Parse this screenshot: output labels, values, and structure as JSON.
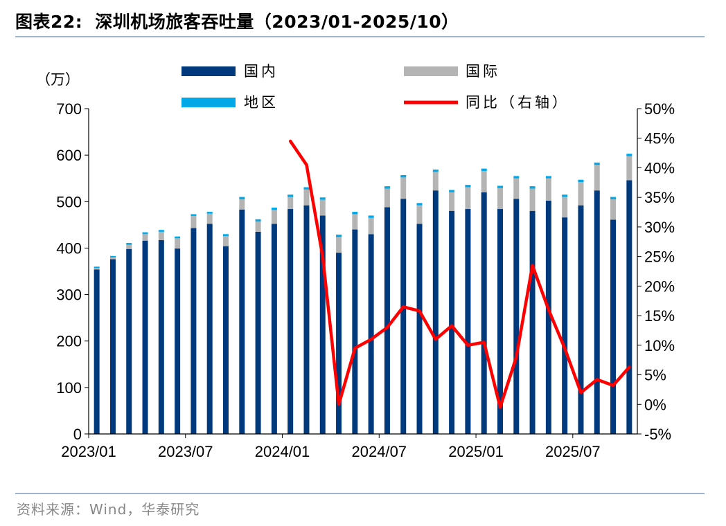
{
  "header": {
    "label": "图表22:",
    "title": "深圳机场旅客吞吐量（2023/01-2025/10）"
  },
  "footer": {
    "source": "资料来源：Wind，华泰研究"
  },
  "chart_data": {
    "type": "bar",
    "stacked": true,
    "unit_left": "（万）",
    "ylim_left": [
      0,
      700
    ],
    "yticks_left": [
      "0",
      "100",
      "200",
      "300",
      "400",
      "500",
      "600",
      "700"
    ],
    "ylim_right": [
      -5,
      50
    ],
    "yticks_right": [
      "-5%",
      "0%",
      "5%",
      "10%",
      "15%",
      "20%",
      "25%",
      "30%",
      "35%",
      "40%",
      "45%",
      "50%"
    ],
    "x_tick_labels": [
      {
        "index": 0,
        "label": "2023/01"
      },
      {
        "index": 6,
        "label": "2023/07"
      },
      {
        "index": 12,
        "label": "2024/01"
      },
      {
        "index": 18,
        "label": "2024/07"
      },
      {
        "index": 24,
        "label": "2025/01"
      },
      {
        "index": 30,
        "label": "2025/07"
      }
    ],
    "categories": [
      "2023/01",
      "2023/02",
      "2023/03",
      "2023/04",
      "2023/05",
      "2023/06",
      "2023/07",
      "2023/08",
      "2023/09",
      "2023/10",
      "2023/11",
      "2023/12",
      "2024/01",
      "2024/02",
      "2024/03",
      "2024/04",
      "2024/05",
      "2024/06",
      "2024/07",
      "2024/08",
      "2024/09",
      "2024/10",
      "2024/11",
      "2024/12",
      "2025/01",
      "2025/02",
      "2025/03",
      "2025/04",
      "2025/05",
      "2025/06",
      "2025/07",
      "2025/08",
      "2025/09",
      "2025/10"
    ],
    "series": [
      {
        "name": "国内",
        "color": "#003a7d",
        "values": [
          354,
          376,
          398,
          416,
          417,
          399,
          443,
          452,
          404,
          483,
          435,
          452,
          484,
          492,
          470,
          390,
          440,
          430,
          488,
          506,
          452,
          524,
          480,
          484,
          520,
          484,
          506,
          480,
          502,
          466,
          492,
          524,
          461,
          546
        ]
      },
      {
        "name": "国际",
        "color": "#b4b4b4",
        "values": [
          3,
          4,
          9,
          14,
          18,
          22,
          26,
          22,
          22,
          22,
          22,
          30,
          26,
          34,
          34,
          34,
          33,
          35,
          40,
          46,
          40,
          40,
          40,
          47,
          46,
          45,
          44,
          48,
          48,
          44,
          50,
          55,
          44,
          52
        ]
      },
      {
        "name": "地区",
        "color": "#00a8e8",
        "values": [
          3,
          3,
          4,
          4,
          4,
          4,
          4,
          4,
          4,
          5,
          5,
          5,
          5,
          5,
          5,
          5,
          5,
          5,
          5,
          5,
          5,
          5,
          5,
          5,
          5,
          5,
          5,
          5,
          5,
          5,
          5,
          5,
          5,
          5
        ]
      },
      {
        "name": "同比（右轴）",
        "color": "#ff0000",
        "axis": "right",
        "type": "line",
        "values": [
          null,
          null,
          null,
          null,
          null,
          null,
          null,
          null,
          null,
          null,
          null,
          null,
          44.5,
          40.5,
          25.0,
          0.0,
          9.5,
          11.0,
          13.0,
          16.5,
          15.8,
          11.0,
          13.3,
          10.0,
          10.5,
          -0.5,
          8.0,
          23.5,
          16.0,
          9.5,
          2.0,
          4.2,
          3.2,
          6.3
        ]
      }
    ]
  }
}
